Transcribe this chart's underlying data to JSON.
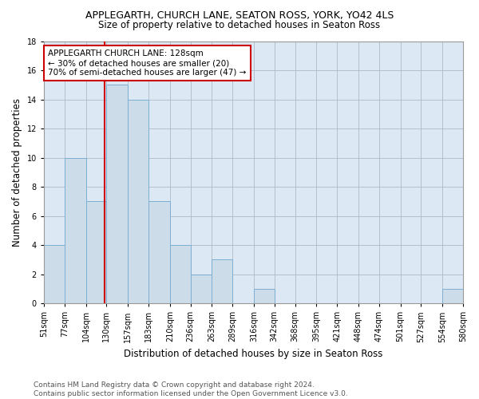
{
  "title": "APPLEGARTH, CHURCH LANE, SEATON ROSS, YORK, YO42 4LS",
  "subtitle": "Size of property relative to detached houses in Seaton Ross",
  "xlabel": "Distribution of detached houses by size in Seaton Ross",
  "ylabel": "Number of detached properties",
  "footer_line1": "Contains HM Land Registry data © Crown copyright and database right 2024.",
  "footer_line2": "Contains public sector information licensed under the Open Government Licence v3.0.",
  "bin_labels": [
    "51sqm",
    "77sqm",
    "104sqm",
    "130sqm",
    "157sqm",
    "183sqm",
    "210sqm",
    "236sqm",
    "263sqm",
    "289sqm",
    "316sqm",
    "342sqm",
    "368sqm",
    "395sqm",
    "421sqm",
    "448sqm",
    "474sqm",
    "501sqm",
    "527sqm",
    "554sqm",
    "580sqm"
  ],
  "bar_heights": [
    4,
    10,
    7,
    15,
    14,
    7,
    4,
    2,
    3,
    0,
    1,
    0,
    0,
    0,
    0,
    0,
    0,
    0,
    0,
    1,
    0
  ],
  "bin_edges": [
    51,
    77,
    104,
    130,
    157,
    183,
    210,
    236,
    263,
    289,
    316,
    342,
    368,
    395,
    421,
    448,
    474,
    501,
    527,
    554,
    580
  ],
  "property_size": 128,
  "bar_color": "#ccdce8",
  "bar_edge_color": "#7bafd4",
  "vline_color": "#cc0000",
  "vline_x": 128,
  "annotation_text": "APPLEGARTH CHURCH LANE: 128sqm\n← 30% of detached houses are smaller (20)\n70% of semi-detached houses are larger (47) →",
  "annotation_box_color": "white",
  "annotation_box_edge_color": "#cc0000",
  "ylim": [
    0,
    18
  ],
  "yticks": [
    0,
    2,
    4,
    6,
    8,
    10,
    12,
    14,
    16,
    18
  ],
  "background_color": "#ffffff",
  "axes_bg_color": "#dce9f5",
  "grid_color": "#b0b8c8",
  "title_fontsize": 9,
  "subtitle_fontsize": 8.5,
  "axis_label_fontsize": 8.5,
  "tick_fontsize": 7,
  "footer_fontsize": 6.5,
  "annotation_fontsize": 7.5
}
